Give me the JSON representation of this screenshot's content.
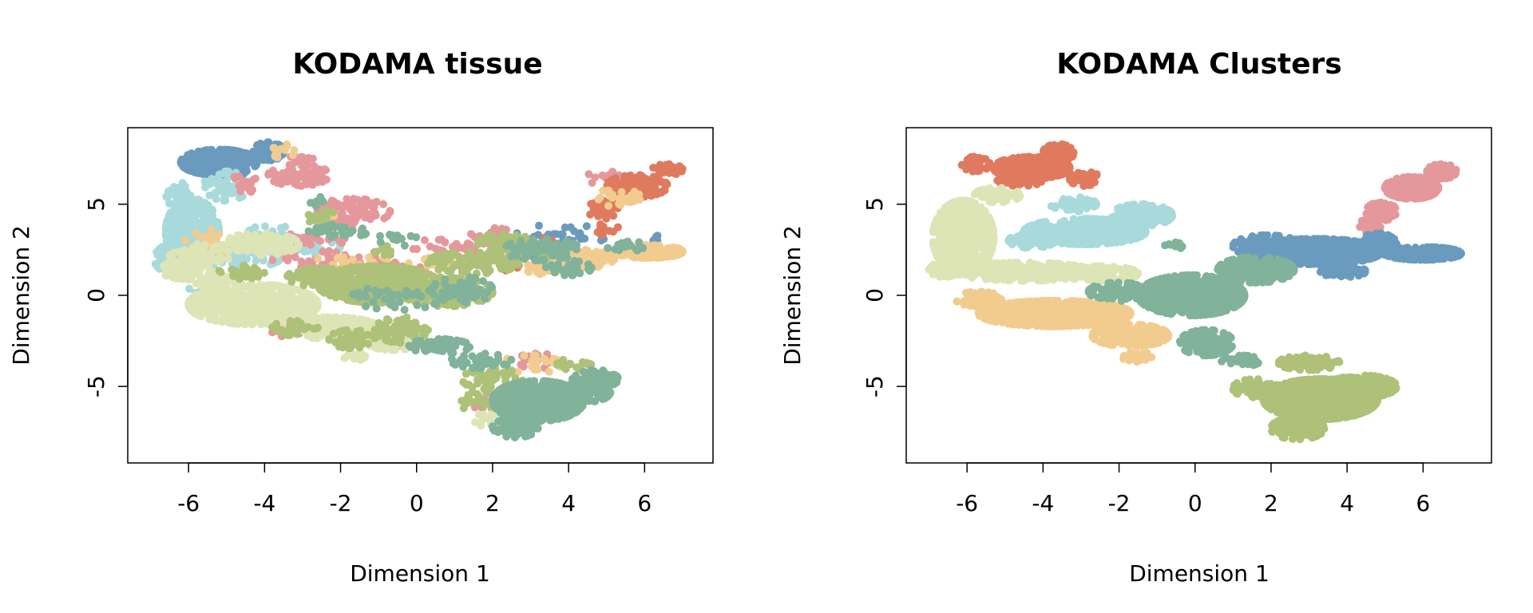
{
  "chart_data": [
    {
      "type": "scatter",
      "title": "KODAMA tissue",
      "xlabel": "Dimension 1",
      "ylabel": "Dimension 2",
      "xlim": [
        -7.6,
        7.8
      ],
      "ylim": [
        -9.2,
        9.2
      ],
      "xticks": [
        -6,
        -4,
        -2,
        0,
        2,
        4,
        6
      ],
      "yticks": [
        -5,
        0,
        5
      ],
      "grid": false,
      "legend": "none",
      "colors": [
        "#E07A5F",
        "#E5989B",
        "#6A9BBE",
        "#A8DADC",
        "#DDE5B6",
        "#ADC178",
        "#81B29A",
        "#F2CC8F"
      ],
      "series": [
        {
          "color": "#6A9BBE",
          "regions": [
            [
              -5.2,
              7.3,
              1.0,
              0.7,
              2200
            ],
            [
              -3.9,
              7.9,
              0.4,
              0.5,
              600
            ],
            [
              -6.0,
              4.9,
              0.25,
              0.4,
              120
            ],
            [
              3.8,
              3.3,
              1.2,
              0.6,
              160
            ],
            [
              6.2,
              3.1,
              0.3,
              0.2,
              30
            ],
            [
              2.8,
              2.1,
              0.3,
              0.3,
              30
            ],
            [
              -4.7,
              2.1,
              0.4,
              0.3,
              40
            ],
            [
              -5.0,
              6.8,
              0.5,
              0.3,
              200
            ]
          ]
        },
        {
          "color": "#A8DADC",
          "regions": [
            [
              -5.9,
              3.5,
              0.7,
              1.8,
              1600
            ],
            [
              -6.4,
              2.0,
              0.5,
              0.8,
              400
            ],
            [
              -5.0,
              6.0,
              0.6,
              0.8,
              300
            ],
            [
              -3.8,
              3.3,
              0.9,
              0.5,
              200
            ],
            [
              -4.8,
              2.0,
              1.2,
              0.5,
              220
            ],
            [
              -2.8,
              2.6,
              0.9,
              0.4,
              160
            ],
            [
              -6.2,
              5.2,
              0.4,
              1.0,
              300
            ],
            [
              -5.6,
              0.2,
              0.4,
              0.5,
              120
            ]
          ]
        },
        {
          "color": "#E5989B",
          "regions": [
            [
              -3.1,
              6.6,
              0.8,
              0.6,
              450
            ],
            [
              -1.7,
              4.6,
              1.0,
              0.7,
              500
            ],
            [
              -4.5,
              6.1,
              0.5,
              0.5,
              120
            ],
            [
              -2.8,
              3.1,
              1.0,
              0.4,
              180
            ],
            [
              -1.2,
              1.6,
              1.3,
              0.5,
              220
            ],
            [
              1.2,
              2.6,
              1.4,
              0.6,
              220
            ],
            [
              2.0,
              3.2,
              0.6,
              0.5,
              120
            ],
            [
              -2.8,
              2.0,
              1.0,
              0.5,
              120
            ],
            [
              5.0,
              6.4,
              0.6,
              0.4,
              80
            ],
            [
              3.2,
              -3.6,
              0.6,
              0.4,
              120
            ],
            [
              1.8,
              -6.0,
              0.4,
              0.3,
              50
            ],
            [
              -0.2,
              -2.5,
              1.0,
              0.4,
              60
            ],
            [
              -3.2,
              -2.0,
              0.6,
              0.3,
              40
            ],
            [
              -3.1,
              7.4,
              0.4,
              0.3,
              80
            ]
          ]
        },
        {
          "color": "#E07A5F",
          "regions": [
            [
              5.8,
              6.0,
              0.8,
              0.6,
              700
            ],
            [
              6.6,
              6.9,
              0.4,
              0.3,
              220
            ],
            [
              4.9,
              4.7,
              0.4,
              0.5,
              150
            ],
            [
              5.0,
              3.7,
              0.3,
              0.4,
              60
            ],
            [
              2.5,
              1.6,
              0.4,
              0.3,
              30
            ],
            [
              3.4,
              2.9,
              0.3,
              0.3,
              25
            ]
          ]
        },
        {
          "color": "#F2CC8F",
          "regions": [
            [
              6.1,
              2.4,
              0.9,
              0.35,
              1400
            ],
            [
              4.4,
              2.0,
              0.8,
              0.5,
              500
            ],
            [
              3.4,
              1.5,
              0.5,
              0.5,
              200
            ],
            [
              5.3,
              5.3,
              0.6,
              0.6,
              150
            ],
            [
              -3.5,
              7.9,
              0.3,
              0.4,
              80
            ],
            [
              -5.4,
              2.9,
              0.7,
              0.7,
              160
            ],
            [
              -1.7,
              1.8,
              1.0,
              0.5,
              140
            ],
            [
              3.0,
              -3.8,
              0.8,
              0.5,
              140
            ],
            [
              0.5,
              1.9,
              0.8,
              0.3,
              80
            ],
            [
              -2.6,
              4.2,
              0.5,
              0.3,
              50
            ]
          ]
        },
        {
          "color": "#DDE5B6",
          "regions": [
            [
              -4.3,
              -0.5,
              1.7,
              1.1,
              3200
            ],
            [
              -6.2,
              1.4,
              0.5,
              0.5,
              500
            ],
            [
              -2.2,
              -1.8,
              1.2,
              0.6,
              900
            ],
            [
              -0.6,
              -2.4,
              0.8,
              0.6,
              400
            ],
            [
              -4.1,
              2.8,
              1.0,
              0.6,
              600
            ],
            [
              -5.7,
              2.2,
              0.8,
              0.6,
              400
            ],
            [
              -1.5,
              -3.4,
              0.4,
              0.3,
              80
            ],
            [
              2.5,
              -6.8,
              1.0,
              0.6,
              200
            ],
            [
              -5.1,
              0.9,
              0.9,
              0.4,
              300
            ]
          ]
        },
        {
          "color": "#ADC178",
          "regions": [
            [
              -1.0,
              0.6,
              1.6,
              1.0,
              3000
            ],
            [
              0.8,
              0.2,
              1.2,
              0.8,
              1200
            ],
            [
              -2.6,
              1.0,
              0.8,
              0.5,
              600
            ],
            [
              1.5,
              1.8,
              1.2,
              0.6,
              700
            ],
            [
              2.4,
              2.9,
              0.8,
              0.5,
              300
            ],
            [
              -1.7,
              -2.4,
              0.6,
              0.5,
              300
            ],
            [
              -0.4,
              -1.9,
              0.7,
              0.7,
              400
            ],
            [
              -3.2,
              -1.8,
              0.6,
              0.4,
              150
            ],
            [
              -4.6,
              1.3,
              0.6,
              0.4,
              150
            ],
            [
              2.0,
              -4.6,
              0.8,
              0.6,
              300
            ],
            [
              1.6,
              -5.8,
              0.6,
              0.5,
              150
            ],
            [
              4.2,
              -3.8,
              0.5,
              0.4,
              100
            ],
            [
              3.3,
              2.4,
              0.6,
              0.4,
              80
            ],
            [
              -0.8,
              2.5,
              0.4,
              0.3,
              60
            ],
            [
              -2.5,
              4.3,
              0.4,
              0.4,
              80
            ]
          ]
        },
        {
          "color": "#81B29A",
          "regions": [
            [
              3.2,
              -5.8,
              1.2,
              1.1,
              3200
            ],
            [
              4.3,
              -5.3,
              0.8,
              0.6,
              800
            ],
            [
              2.6,
              -7.2,
              0.6,
              0.6,
              500
            ],
            [
              4.7,
              -4.6,
              0.6,
              0.5,
              400
            ],
            [
              0.6,
              -2.8,
              0.8,
              0.4,
              300
            ],
            [
              1.7,
              -3.6,
              0.8,
              0.4,
              250
            ],
            [
              3.3,
              2.5,
              1.0,
              0.6,
              450
            ],
            [
              4.0,
              1.5,
              0.6,
              0.4,
              200
            ],
            [
              1.2,
              0.3,
              0.8,
              0.7,
              300
            ],
            [
              -0.5,
              -0.1,
              1.2,
              0.7,
              200
            ],
            [
              -2.1,
              3.5,
              0.8,
              0.4,
              160
            ],
            [
              -0.5,
              3.1,
              0.5,
              0.4,
              80
            ],
            [
              -2.6,
              5.1,
              0.3,
              0.3,
              40
            ],
            [
              5.5,
              2.7,
              0.5,
              0.3,
              100
            ]
          ]
        }
      ]
    },
    {
      "type": "scatter",
      "title": "KODAMA Clusters",
      "xlabel": "Dimension 1",
      "ylabel": "Dimension 2",
      "xlim": [
        -7.6,
        7.8
      ],
      "ylim": [
        -9.2,
        9.2
      ],
      "xticks": [
        -6,
        -4,
        -2,
        0,
        2,
        4,
        6
      ],
      "yticks": [
        -5,
        0,
        5
      ],
      "grid": false,
      "legend": "none",
      "colors": [
        "#E07A5F",
        "#E5989B",
        "#6A9BBE",
        "#A8DADC",
        "#DDE5B6",
        "#ADC178",
        "#81B29A",
        "#F2CC8F"
      ],
      "series": [
        {
          "color": "#E07A5F",
          "regions": [
            [
              -4.3,
              7.0,
              1.0,
              0.6,
              2600
            ],
            [
              -3.6,
              7.8,
              0.4,
              0.5,
              600
            ],
            [
              -5.8,
              7.2,
              0.4,
              0.4,
              300
            ],
            [
              -2.9,
              6.4,
              0.4,
              0.4,
              300
            ],
            [
              -4.6,
              6.3,
              0.6,
              0.3,
              300
            ]
          ]
        },
        {
          "color": "#E5989B",
          "regions": [
            [
              5.7,
              5.9,
              0.7,
              0.6,
              1500
            ],
            [
              6.5,
              6.8,
              0.4,
              0.4,
              500
            ],
            [
              4.9,
              4.6,
              0.4,
              0.5,
              400
            ],
            [
              4.6,
              3.8,
              0.3,
              0.4,
              200
            ]
          ]
        },
        {
          "color": "#6A9BBE",
          "regions": [
            [
              3.2,
              2.4,
              1.7,
              0.7,
              3500
            ],
            [
              6.0,
              2.3,
              1.0,
              0.35,
              1800
            ],
            [
              1.9,
              2.7,
              0.9,
              0.6,
              800
            ],
            [
              4.8,
              2.8,
              0.5,
              0.6,
              500
            ],
            [
              3.9,
              1.3,
              0.6,
              0.3,
              300
            ]
          ]
        },
        {
          "color": "#A8DADC",
          "regions": [
            [
              -2.9,
              3.5,
              1.6,
              0.7,
              2600
            ],
            [
              -1.4,
              4.4,
              0.8,
              0.6,
              800
            ],
            [
              -4.3,
              3.0,
              0.6,
              0.4,
              400
            ],
            [
              -3.2,
              5.0,
              0.6,
              0.4,
              300
            ]
          ]
        },
        {
          "color": "#DDE5B6",
          "regions": [
            [
              -6.1,
              3.2,
              0.8,
              2.0,
              3000
            ],
            [
              -4.5,
              1.3,
              1.8,
              0.5,
              2000
            ],
            [
              -6.6,
              1.4,
              0.4,
              0.4,
              400
            ],
            [
              -5.2,
              5.5,
              0.6,
              0.4,
              400
            ],
            [
              -2.5,
              1.2,
              1.0,
              0.4,
              600
            ]
          ]
        },
        {
          "color": "#F2CC8F",
          "regions": [
            [
              -3.7,
              -1.0,
              2.0,
              0.7,
              3500
            ],
            [
              -1.7,
              -2.2,
              1.0,
              0.6,
              1200
            ],
            [
              -5.7,
              -0.2,
              0.6,
              0.4,
              400
            ],
            [
              -1.5,
              -3.4,
              0.4,
              0.3,
              120
            ]
          ]
        },
        {
          "color": "#81B29A",
          "regions": [
            [
              -0.1,
              0.0,
              1.4,
              1.1,
              3500
            ],
            [
              1.6,
              1.4,
              1.0,
              0.7,
              1200
            ],
            [
              0.3,
              -2.6,
              0.7,
              0.7,
              800
            ],
            [
              -2.0,
              0.2,
              0.8,
              0.5,
              600
            ],
            [
              1.2,
              -3.6,
              0.5,
              0.3,
              200
            ],
            [
              -0.5,
              2.7,
              0.3,
              0.2,
              60
            ]
          ]
        },
        {
          "color": "#ADC178",
          "regions": [
            [
              3.3,
              -5.7,
              1.5,
              1.1,
              4500
            ],
            [
              4.4,
              -5.0,
              0.9,
              0.6,
              1200
            ],
            [
              2.7,
              -7.3,
              0.7,
              0.6,
              700
            ],
            [
              1.6,
              -5.1,
              0.6,
              0.5,
              500
            ],
            [
              3.0,
              -3.7,
              0.8,
              0.4,
              500
            ]
          ]
        }
      ]
    }
  ]
}
